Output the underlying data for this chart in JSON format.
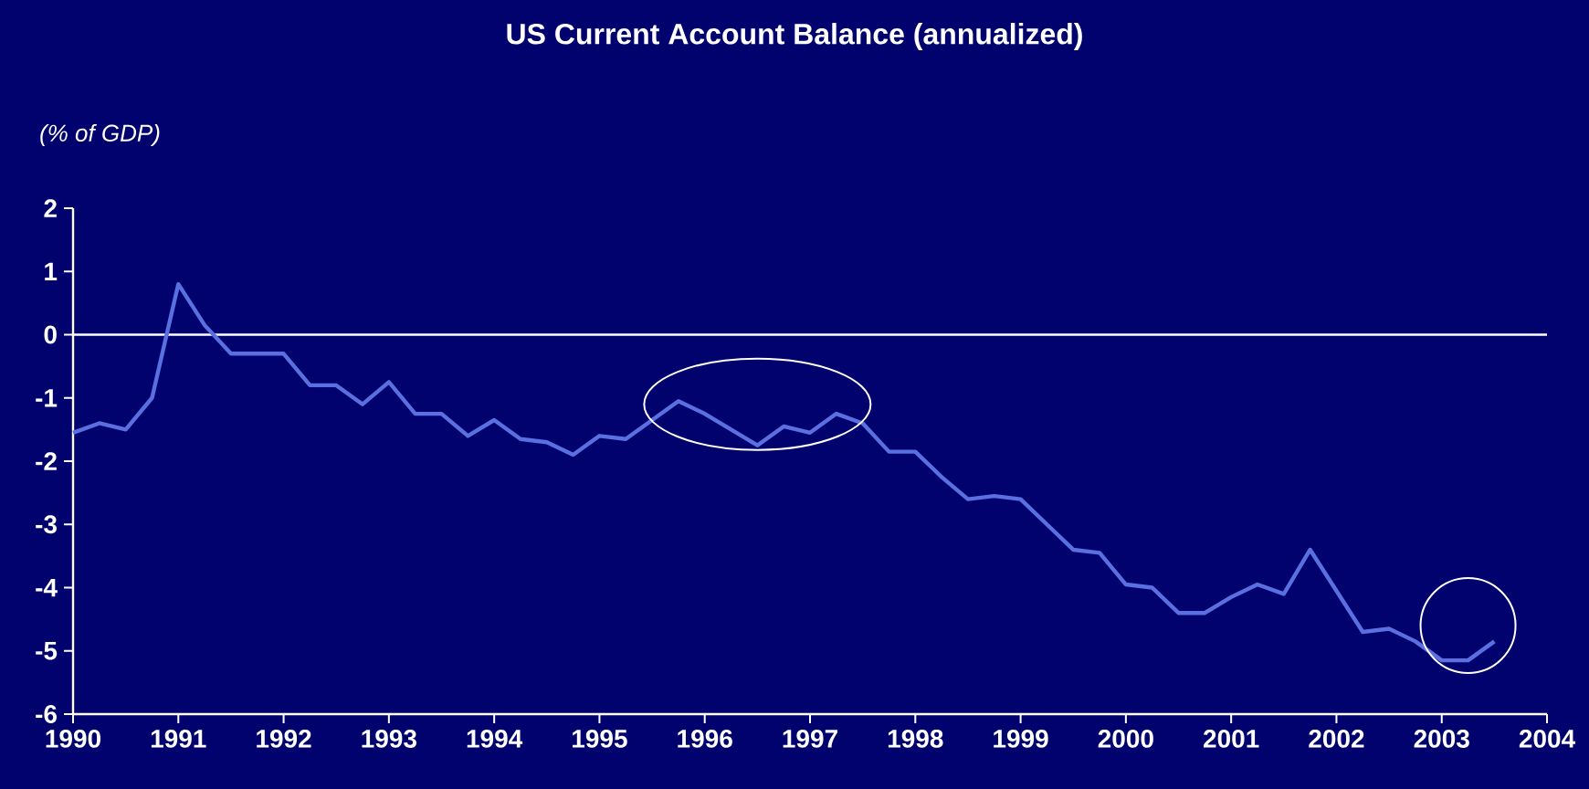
{
  "chart_data": {
    "type": "line",
    "title": "US Current Account Balance (annualized)",
    "ylabel": "(% of GDP)",
    "x": [
      1990.0,
      1990.25,
      1990.5,
      1990.75,
      1991.0,
      1991.25,
      1991.5,
      1991.75,
      1992.0,
      1992.25,
      1992.5,
      1992.75,
      1993.0,
      1993.25,
      1993.5,
      1993.75,
      1994.0,
      1994.25,
      1994.5,
      1994.75,
      1995.0,
      1995.25,
      1995.5,
      1995.75,
      1996.0,
      1996.25,
      1996.5,
      1996.75,
      1997.0,
      1997.25,
      1997.5,
      1997.75,
      1998.0,
      1998.25,
      1998.5,
      1998.75,
      1999.0,
      1999.25,
      1999.5,
      1999.75,
      2000.0,
      2000.25,
      2000.5,
      2000.75,
      2001.0,
      2001.25,
      2001.5,
      2001.75,
      2002.0,
      2002.25,
      2002.5,
      2002.75,
      2003.0,
      2003.25,
      2003.5
    ],
    "series": [
      {
        "color": "#5a6fe0",
        "values": [
          -1.55,
          -1.4,
          -1.5,
          -1.0,
          0.8,
          0.15,
          -0.3,
          -0.3,
          -0.3,
          -0.8,
          -0.8,
          -1.1,
          -0.75,
          -1.25,
          -1.25,
          -1.6,
          -1.35,
          -1.65,
          -1.7,
          -1.9,
          -1.6,
          -1.65,
          -1.35,
          -1.05,
          -1.25,
          -1.5,
          -1.75,
          -1.45,
          -1.55,
          -1.25,
          -1.4,
          -1.85,
          -1.85,
          -2.25,
          -2.6,
          -2.55,
          -2.6,
          -3.0,
          -3.4,
          -3.45,
          -3.95,
          -4.0,
          -4.4,
          -4.4,
          -4.15,
          -3.95,
          -4.1,
          -3.4,
          -4.05,
          -4.7,
          -4.65,
          -4.85,
          -5.15,
          -5.15,
          -4.85
        ]
      }
    ],
    "xlim": [
      1990,
      2004
    ],
    "xticks": [
      1990,
      1991,
      1992,
      1993,
      1994,
      1995,
      1996,
      1997,
      1998,
      1999,
      2000,
      2001,
      2002,
      2003,
      2004
    ],
    "ylim": [
      -6,
      2
    ],
    "yticks": [
      -6,
      -5,
      -4,
      -3,
      -2,
      -1,
      0,
      1,
      2
    ],
    "ref_lines": [
      {
        "axis": "y",
        "value": 0,
        "color": "#ffffff"
      }
    ],
    "grid": false,
    "marker": "none",
    "line_style": "solid"
  }
}
